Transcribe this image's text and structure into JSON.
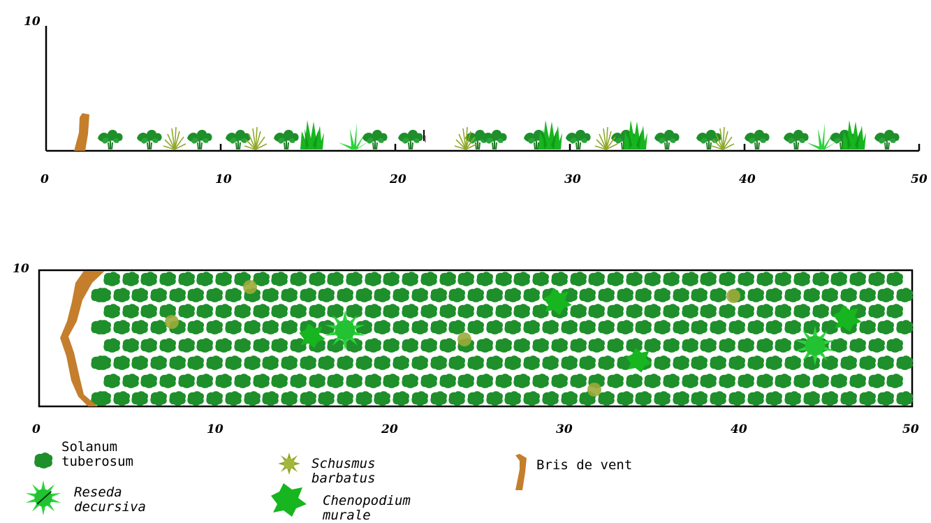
{
  "profile_view": {
    "y_top_label": "10",
    "x_tick_labels": [
      "0",
      "10",
      "20",
      "30",
      "40",
      "50"
    ]
  },
  "plan_view": {
    "y_top_label": "10",
    "x_tick_labels": [
      "0",
      "10",
      "20",
      "30",
      "40",
      "50"
    ]
  },
  "legend": {
    "solanum": {
      "line1": "Solanum",
      "line2": "tuberosum"
    },
    "schusmus": {
      "line1": "Schusmus",
      "line2": "barbatus"
    },
    "bris": {
      "label": "Bris de vent"
    },
    "reseda": {
      "line1": "Reseda",
      "line2": "decursiva"
    },
    "chenopodium": {
      "line1": "Chenopodium",
      "line2": "murale"
    }
  },
  "colors": {
    "solanum": "#1e8f2a",
    "schusmus": "#8fa82a",
    "reseda": "#2bd43a",
    "chenopodium": "#17b51f",
    "windbreak": "#c47e2c",
    "axis": "#000000"
  }
}
